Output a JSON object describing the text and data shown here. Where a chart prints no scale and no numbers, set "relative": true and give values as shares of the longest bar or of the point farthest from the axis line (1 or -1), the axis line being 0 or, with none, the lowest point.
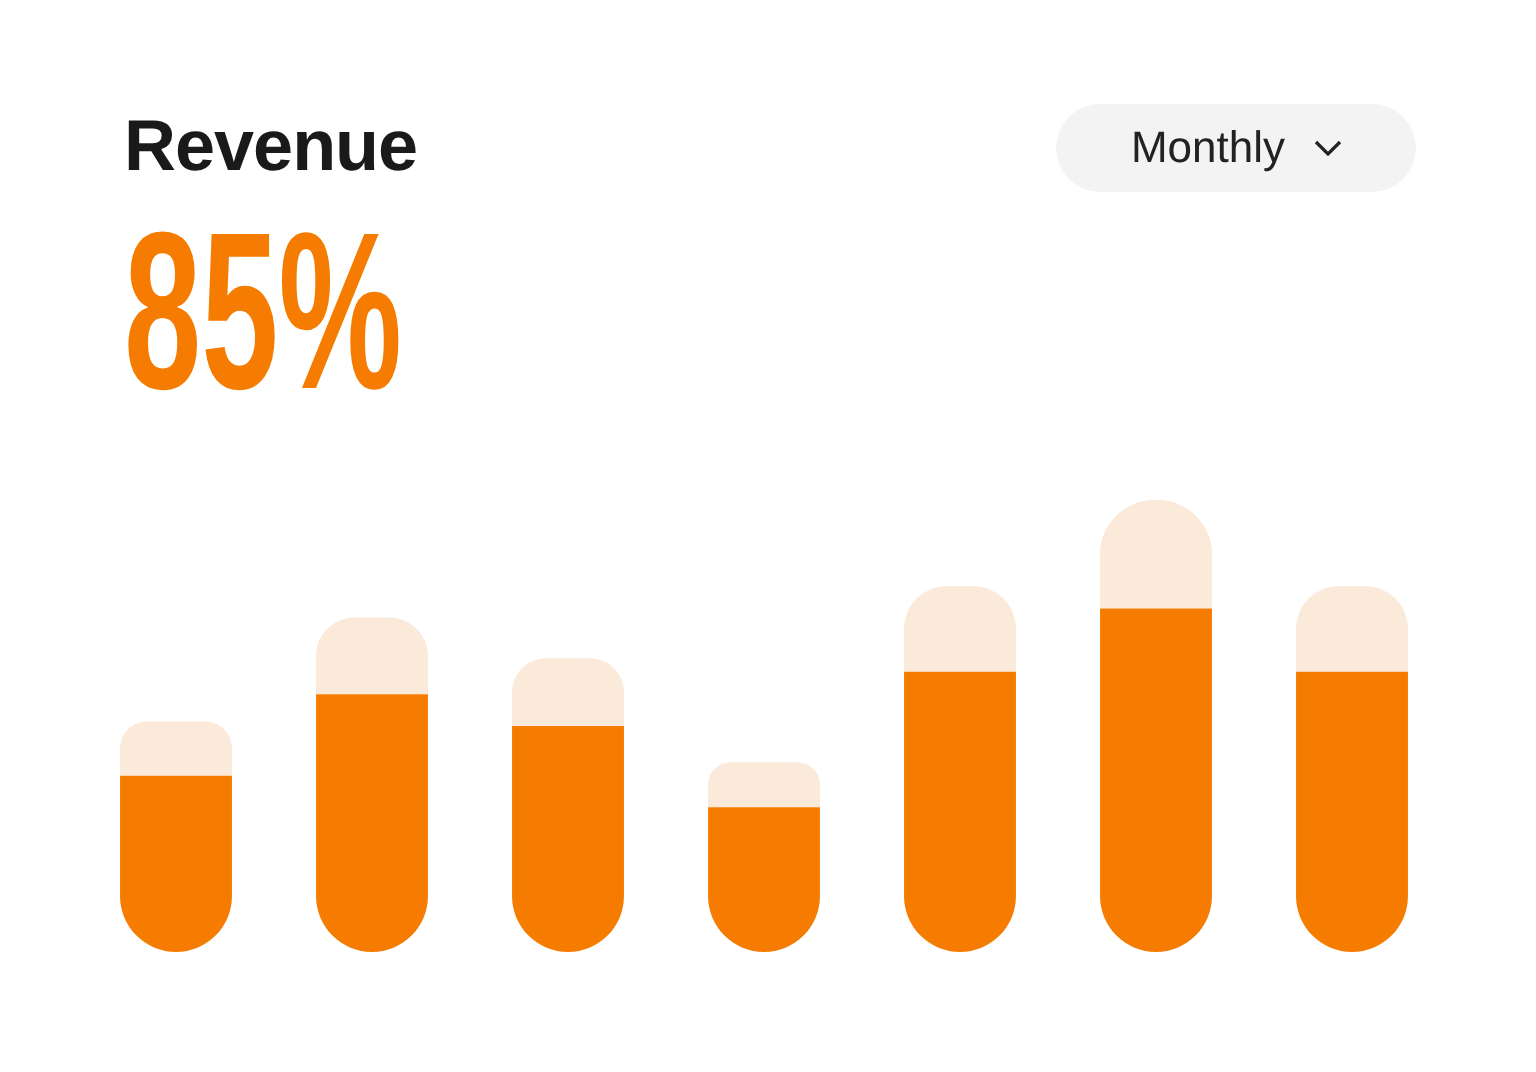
{
  "chart_data": {
    "type": "bar",
    "title": "Revenue",
    "subtitle": "85%",
    "annotations": [
      "Monthly"
    ],
    "relative": true,
    "legend": false,
    "stacked": true,
    "categories": [
      null,
      null,
      null,
      null,
      null,
      null,
      null
    ],
    "series": [
      {
        "color": "#f57c00",
        "values": [
          0.39,
          0.57,
          0.5,
          0.32,
          0.62,
          0.76,
          0.62
        ]
      },
      {
        "color": "#fbe9d9",
        "values": [
          0.12,
          0.17,
          0.15,
          0.1,
          0.19,
          0.24,
          0.19
        ]
      }
    ]
  }
}
